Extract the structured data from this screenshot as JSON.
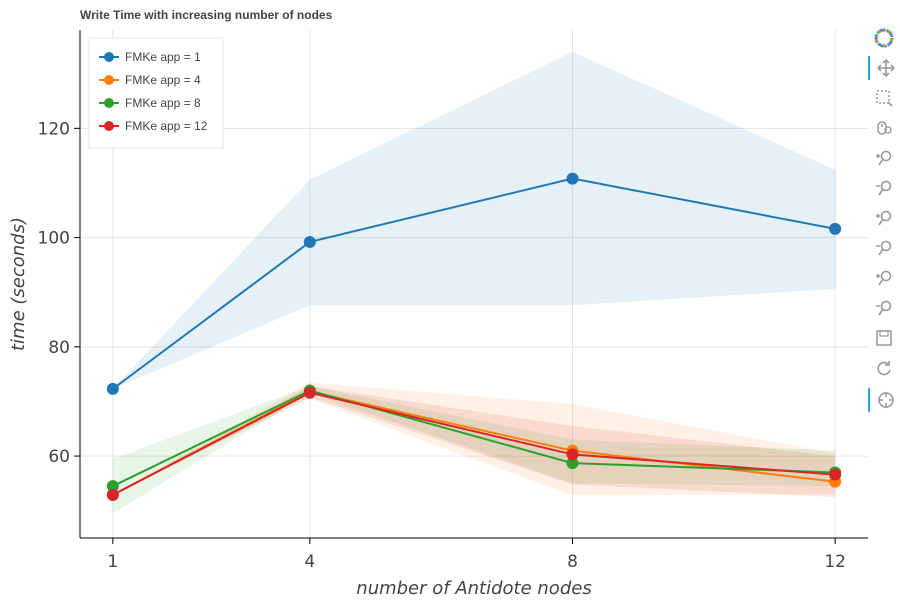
{
  "chart_data": {
    "type": "line",
    "title": "Write Time with increasing number of nodes",
    "xlabel": "number of Antidote nodes",
    "ylabel": "time (seconds)",
    "x": [
      1,
      4,
      8,
      12
    ],
    "xticks": [
      "1",
      "4",
      "8",
      "12"
    ],
    "yticks": [
      "60",
      "80",
      "100",
      "120"
    ],
    "xlim": [
      0.5,
      12.5
    ],
    "ylim": [
      45,
      138
    ],
    "grid": true,
    "legend_position": "top-left",
    "series": [
      {
        "name": "FMKe app = 1",
        "color": "#1f77b4",
        "values": [
          72.3,
          99.2,
          110.8,
          101.6
        ],
        "band_low": [
          72.3,
          87.6,
          87.6,
          90.6
        ],
        "band_high": [
          72.3,
          110.6,
          134.0,
          112.4
        ]
      },
      {
        "name": "FMKe app = 4",
        "color": "#ff7f0e",
        "values": [
          52.9,
          71.8,
          61.0,
          55.3
        ],
        "band_low": [
          52.9,
          70.5,
          52.8,
          53.0
        ],
        "band_high": [
          52.9,
          73.5,
          69.5,
          60.5
        ]
      },
      {
        "name": "FMKe app = 8",
        "color": "#2ca02c",
        "values": [
          54.5,
          72.0,
          58.7,
          57.0
        ],
        "band_low": [
          49.5,
          71.5,
          55.0,
          54.5
        ],
        "band_high": [
          59.5,
          72.8,
          63.0,
          61.0
        ]
      },
      {
        "name": "FMKe app = 12",
        "color": "#d62728",
        "values": [
          52.9,
          71.6,
          60.3,
          56.6
        ],
        "band_low": [
          52.9,
          70.8,
          54.8,
          52.5
        ],
        "band_high": [
          52.9,
          72.8,
          65.5,
          60.0
        ]
      }
    ]
  },
  "toolbar": {
    "tools": [
      {
        "icon": "bokeh-logo-icon",
        "active": false
      },
      {
        "icon": "pan-icon",
        "active": true
      },
      {
        "icon": "box-zoom-icon",
        "active": false
      },
      {
        "icon": "wheel-zoom-icon",
        "active": false
      },
      {
        "icon": "zoom-in-icon",
        "active": false
      },
      {
        "icon": "zoom-out-icon",
        "active": false
      },
      {
        "icon": "zoom-in-icon",
        "active": false
      },
      {
        "icon": "zoom-out-icon",
        "active": false
      },
      {
        "icon": "zoom-in-icon",
        "active": false
      },
      {
        "icon": "zoom-out-icon",
        "active": false
      },
      {
        "icon": "save-icon",
        "active": false
      },
      {
        "icon": "reset-icon",
        "active": false
      },
      {
        "icon": "crosshair-icon",
        "active": true
      }
    ]
  }
}
